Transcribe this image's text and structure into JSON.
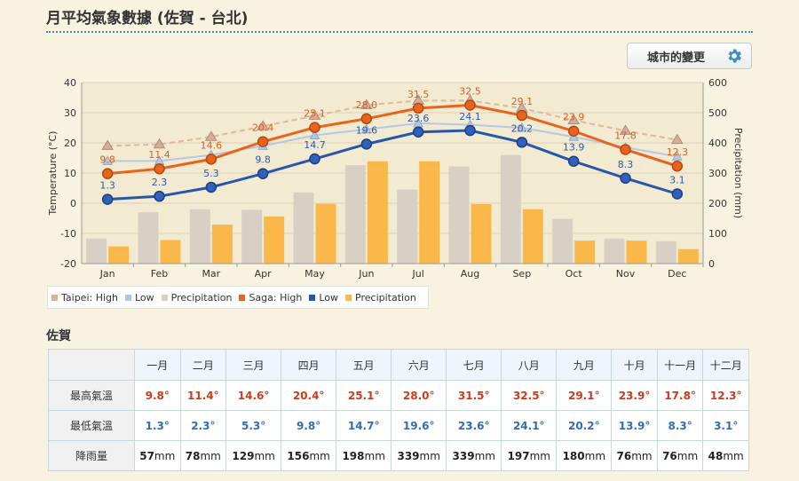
{
  "page": {
    "title": "月平均氣象數據 (佐賀 - 台北)",
    "city_button_label": "城市的變更"
  },
  "legend": [
    {
      "label": "Taipei: High",
      "color": "#d9b0a0"
    },
    {
      "label": "Low",
      "color": "#aec4e2"
    },
    {
      "label": "Precipitation",
      "color": "#d8d0c4"
    },
    {
      "label": "Saga: High",
      "color": "#e8641c"
    },
    {
      "label": "Low",
      "color": "#2857a8"
    },
    {
      "label": "Precipitation",
      "color": "#fbb84a"
    }
  ],
  "chart_data": {
    "type": "bar+line",
    "categories": [
      "Jan",
      "Feb",
      "Mar",
      "Apr",
      "May",
      "Jun",
      "Jul",
      "Aug",
      "Sep",
      "Oct",
      "Nov",
      "Dec"
    ],
    "y_left": {
      "label": "Temperature (°C)",
      "min": -20,
      "max": 40,
      "ticks": [
        -20,
        -10,
        0,
        10,
        20,
        30,
        40
      ]
    },
    "y_right": {
      "label": "Precipitation (mm)",
      "min": 0,
      "max": 600,
      "ticks": [
        0,
        100,
        200,
        300,
        400,
        500,
        600
      ]
    },
    "series": [
      {
        "name": "Taipei: High",
        "axis": "left",
        "kind": "line-dashed",
        "values": [
          19,
          19.5,
          22,
          25.5,
          29,
          32.5,
          34,
          34,
          31.5,
          27.5,
          24,
          21
        ]
      },
      {
        "name": "Low",
        "axis": "left",
        "kind": "line-faint",
        "values": [
          14,
          14,
          16,
          19,
          22.5,
          24.5,
          26.5,
          26,
          25,
          22,
          18.5,
          15.5
        ]
      },
      {
        "name": "Precipitation",
        "axis": "right",
        "kind": "bar",
        "values": [
          83,
          170,
          180,
          178,
          236,
          326,
          245,
          322,
          360,
          148,
          83,
          74
        ]
      },
      {
        "name": "Saga: High",
        "axis": "left",
        "kind": "line",
        "values": [
          9.8,
          11.4,
          14.6,
          20.4,
          25.1,
          28.0,
          31.5,
          32.5,
          29.1,
          23.9,
          17.8,
          12.3
        ]
      },
      {
        "name": "Low",
        "axis": "left",
        "kind": "line",
        "values": [
          1.3,
          2.3,
          5.3,
          9.8,
          14.7,
          19.6,
          23.6,
          24.1,
          20.2,
          13.9,
          8.3,
          3.1
        ]
      },
      {
        "name": "Precipitation",
        "axis": "right",
        "kind": "bar",
        "values": [
          57,
          78,
          129,
          156,
          198,
          339,
          339,
          197,
          180,
          76,
          76,
          48
        ]
      }
    ],
    "high_labels": [
      "9.8",
      "11.4",
      "14.6",
      "20.4",
      "25.1",
      "28.0",
      "31.5",
      "32.5",
      "29.1",
      "23.9",
      "17.8",
      "12.3"
    ],
    "low_labels": [
      "1.3",
      "2.3",
      "5.3",
      "9.8",
      "14.7",
      "19.6",
      "23.6",
      "24.1",
      "20.2",
      "13.9",
      "8.3",
      "3.1"
    ]
  },
  "table": {
    "section_title": "佐賀",
    "months": [
      "一月",
      "二月",
      "三月",
      "四月",
      "五月",
      "六月",
      "七月",
      "八月",
      "九月",
      "十月",
      "十一月",
      "十二月"
    ],
    "rows": [
      {
        "label": "最高氣溫",
        "class": "hi",
        "values": [
          "9.8°",
          "11.4°",
          "14.6°",
          "20.4°",
          "25.1°",
          "28.0°",
          "31.5°",
          "32.5°",
          "29.1°",
          "23.9°",
          "17.8°",
          "12.3°"
        ]
      },
      {
        "label": "最低氣溫",
        "class": "lo",
        "values": [
          "1.3°",
          "2.3°",
          "5.3°",
          "9.8°",
          "14.7°",
          "19.6°",
          "23.6°",
          "24.1°",
          "20.2°",
          "13.9°",
          "8.3°",
          "3.1°"
        ]
      },
      {
        "label": "降雨量",
        "class": "pr",
        "values": [
          "57",
          "78",
          "129",
          "156",
          "198",
          "339",
          "339",
          "197",
          "180",
          "76",
          "76",
          "48"
        ],
        "unit": "mm"
      }
    ]
  }
}
